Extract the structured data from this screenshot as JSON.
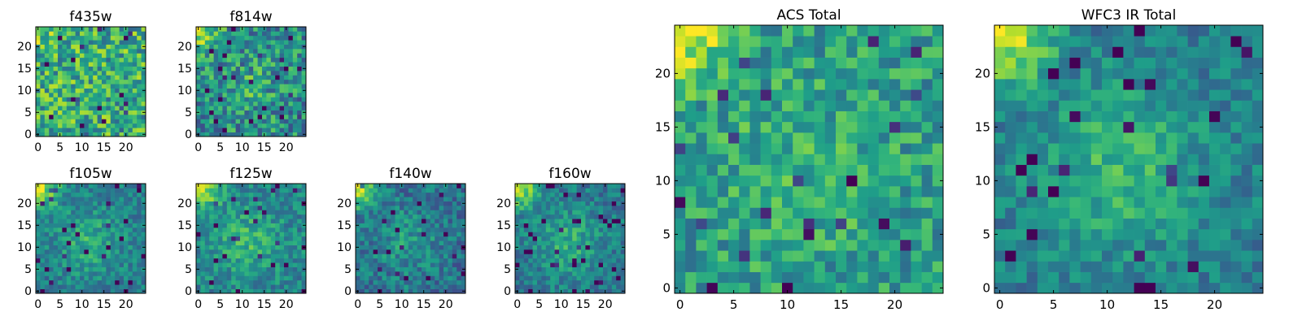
{
  "colormap": "viridis",
  "frame_color": "#000000",
  "chart_data": [
    {
      "type": "heatmap",
      "title": "f435w",
      "xlabel": "",
      "ylabel": "",
      "grid_size": 25,
      "xlim": [
        -0.5,
        24.5
      ],
      "ylim": [
        -0.5,
        24.5
      ],
      "xticks": [
        0,
        5,
        10,
        15,
        20
      ],
      "yticks": [
        0,
        5,
        10,
        15,
        20
      ],
      "origin": "lower",
      "colorbar": false,
      "bright_corner": "top-left",
      "corner_strength": 0.15,
      "blob_strength": 0.0,
      "noise": 0.28,
      "bias": 0.62,
      "seed": 11
    },
    {
      "type": "heatmap",
      "title": "f814w",
      "xlabel": "",
      "ylabel": "",
      "grid_size": 25,
      "xlim": [
        -0.5,
        24.5
      ],
      "ylim": [
        -0.5,
        24.5
      ],
      "xticks": [
        0,
        5,
        10,
        15,
        20
      ],
      "yticks": [
        0,
        5,
        10,
        15,
        20
      ],
      "origin": "lower",
      "colorbar": false,
      "bright_corner": "top-left",
      "corner_strength": 0.5,
      "blob_strength": 0.12,
      "noise": 0.26,
      "bias": 0.48,
      "seed": 23
    },
    {
      "type": "heatmap",
      "title": "f105w",
      "xlabel": "",
      "ylabel": "",
      "grid_size": 25,
      "xlim": [
        -0.5,
        24.5
      ],
      "ylim": [
        -0.5,
        24.5
      ],
      "xticks": [
        0,
        5,
        10,
        15,
        20
      ],
      "yticks": [
        0,
        5,
        10,
        15,
        20
      ],
      "origin": "lower",
      "colorbar": false,
      "bright_corner": "top-left",
      "corner_strength": 0.55,
      "blob_strength": 0.2,
      "noise": 0.15,
      "bias": 0.42,
      "seed": 37
    },
    {
      "type": "heatmap",
      "title": "f125w",
      "xlabel": "",
      "ylabel": "",
      "grid_size": 25,
      "xlim": [
        -0.5,
        24.5
      ],
      "ylim": [
        -0.5,
        24.5
      ],
      "xticks": [
        0,
        5,
        10,
        15,
        20
      ],
      "yticks": [
        0,
        5,
        10,
        15,
        20
      ],
      "origin": "lower",
      "colorbar": false,
      "bright_corner": "top-left",
      "corner_strength": 0.55,
      "blob_strength": 0.2,
      "noise": 0.16,
      "bias": 0.45,
      "seed": 41
    },
    {
      "type": "heatmap",
      "title": "f140w",
      "xlabel": "",
      "ylabel": "",
      "grid_size": 25,
      "xlim": [
        -0.5,
        24.5
      ],
      "ylim": [
        -0.5,
        24.5
      ],
      "xticks": [
        0,
        5,
        10,
        15,
        20
      ],
      "yticks": [
        0,
        5,
        10,
        15,
        20
      ],
      "origin": "lower",
      "colorbar": false,
      "bright_corner": "top-left",
      "corner_strength": 0.6,
      "blob_strength": 0.15,
      "noise": 0.17,
      "bias": 0.38,
      "seed": 53
    },
    {
      "type": "heatmap",
      "title": "f160w",
      "xlabel": "",
      "ylabel": "",
      "grid_size": 25,
      "xlim": [
        -0.5,
        24.5
      ],
      "ylim": [
        -0.5,
        24.5
      ],
      "xticks": [
        0,
        5,
        10,
        15,
        20
      ],
      "yticks": [
        0,
        5,
        10,
        15,
        20
      ],
      "origin": "lower",
      "colorbar": false,
      "bright_corner": "top-left",
      "corner_strength": 0.6,
      "blob_strength": 0.22,
      "noise": 0.15,
      "bias": 0.4,
      "seed": 67
    },
    {
      "type": "heatmap",
      "title": "ACS Total",
      "xlabel": "",
      "ylabel": "",
      "grid_size": 25,
      "xlim": [
        -0.5,
        24.5
      ],
      "ylim": [
        -0.5,
        24.5
      ],
      "xticks": [
        0,
        5,
        10,
        15,
        20
      ],
      "yticks": [
        0,
        5,
        10,
        15,
        20
      ],
      "origin": "lower",
      "colorbar": false,
      "bright_corner": "top-left",
      "corner_strength": 0.45,
      "blob_strength": 0.1,
      "noise": 0.2,
      "bias": 0.55,
      "seed": 79
    },
    {
      "type": "heatmap",
      "title": "WFC3 IR Total",
      "xlabel": "",
      "ylabel": "",
      "grid_size": 25,
      "xlim": [
        -0.5,
        24.5
      ],
      "ylim": [
        -0.5,
        24.5
      ],
      "xticks": [
        0,
        5,
        10,
        15,
        20
      ],
      "yticks": [
        0,
        5,
        10,
        15,
        20
      ],
      "origin": "lower",
      "colorbar": false,
      "bright_corner": "top-left",
      "corner_strength": 0.6,
      "blob_strength": 0.25,
      "noise": 0.14,
      "bias": 0.42,
      "seed": 97
    }
  ]
}
